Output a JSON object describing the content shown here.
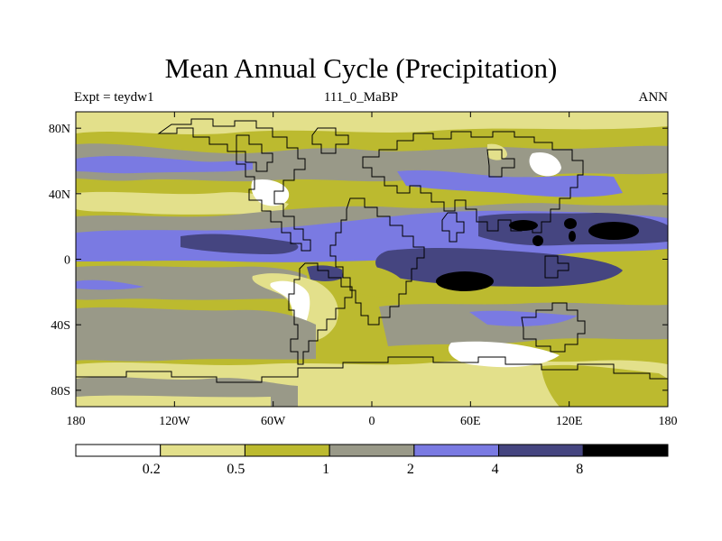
{
  "title": "Mean Annual Cycle (Precipitation)",
  "subtitle_left": "Expt = teydw1",
  "subtitle_center": "111_0_MaBP",
  "subtitle_right": "ANN",
  "colors": {
    "white": "#ffffff",
    "pale_yellow": "#e3e08b",
    "olive": "#bcba2f",
    "gray": "#999988",
    "periwinkle": "#7a7ae2",
    "navy": "#454580",
    "black": "#000000"
  },
  "chart_data": {
    "type": "heatmap",
    "title": "Mean Annual Cycle (Precipitation)",
    "x_range": [
      -180,
      180
    ],
    "y_range": [
      -90,
      90
    ],
    "x_ticks": [
      {
        "value": -180,
        "label": "180"
      },
      {
        "value": -120,
        "label": "120W"
      },
      {
        "value": -60,
        "label": "60W"
      },
      {
        "value": 0,
        "label": "0"
      },
      {
        "value": 60,
        "label": "60E"
      },
      {
        "value": 120,
        "label": "120E"
      },
      {
        "value": 180,
        "label": "180"
      }
    ],
    "y_ticks": [
      {
        "value": 80,
        "label": "80N"
      },
      {
        "value": 40,
        "label": "40N"
      },
      {
        "value": 0,
        "label": "0"
      },
      {
        "value": -40,
        "label": "40S"
      },
      {
        "value": -80,
        "label": "80S"
      }
    ],
    "colorbar": {
      "levels": [
        "0.2",
        "0.5",
        "1",
        "2",
        "4",
        "8"
      ],
      "colors": [
        "#ffffff",
        "#e3e08b",
        "#bcba2f",
        "#999988",
        "#7a7ae2",
        "#454580",
        "#000000"
      ]
    }
  }
}
